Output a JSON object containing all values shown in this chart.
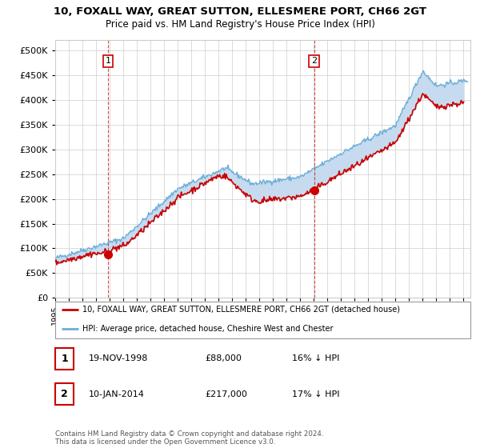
{
  "title": "10, FOXALL WAY, GREAT SUTTON, ELLESMERE PORT, CH66 2GT",
  "subtitle": "Price paid vs. HM Land Registry's House Price Index (HPI)",
  "ytick_values": [
    0,
    50000,
    100000,
    150000,
    200000,
    250000,
    300000,
    350000,
    400000,
    450000,
    500000
  ],
  "ylim": [
    0,
    520000
  ],
  "xlim_start": 1995.0,
  "xlim_end": 2025.5,
  "hpi_color": "#6baed6",
  "fill_color": "#c6dbef",
  "price_color": "#cc0000",
  "sale1_x": 1998.88,
  "sale1_y": 88000,
  "sale2_x": 2014.03,
  "sale2_y": 217000,
  "legend_line1": "10, FOXALL WAY, GREAT SUTTON, ELLESMERE PORT, CH66 2GT (detached house)",
  "legend_line2": "HPI: Average price, detached house, Cheshire West and Chester",
  "note1_label": "1",
  "note1_date": "19-NOV-1998",
  "note1_price": "£88,000",
  "note1_hpi": "16% ↓ HPI",
  "note2_label": "2",
  "note2_date": "10-JAN-2014",
  "note2_price": "£217,000",
  "note2_hpi": "17% ↓ HPI",
  "footer": "Contains HM Land Registry data © Crown copyright and database right 2024.\nThis data is licensed under the Open Government Licence v3.0.",
  "background_color": "#ffffff",
  "grid_color": "#cccccc"
}
